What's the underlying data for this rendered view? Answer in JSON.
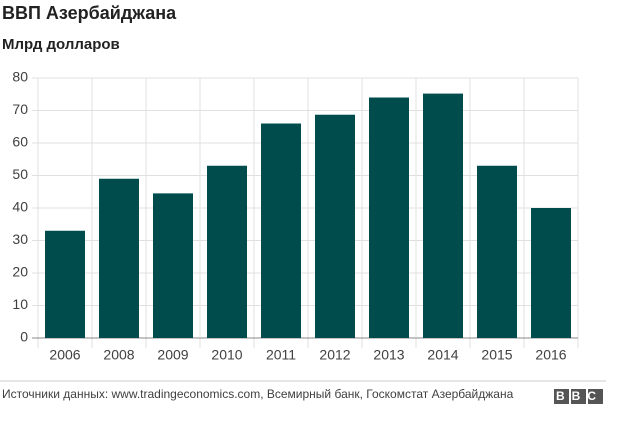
{
  "chart_data": {
    "type": "bar",
    "title": "ВВП Азербайджана",
    "subtitle": "Млрд долларов",
    "categories": [
      "2006",
      "2008",
      "2009",
      "2010",
      "2011",
      "2012",
      "2013",
      "2014",
      "2015",
      "2016"
    ],
    "values": [
      33,
      49,
      44.5,
      53,
      66,
      68.7,
      74,
      75.2,
      53,
      40
    ],
    "color": "#004c4c",
    "ylim": [
      0,
      80
    ],
    "yticks": [
      0,
      10,
      20,
      30,
      40,
      50,
      60,
      70,
      80
    ],
    "grid": true,
    "source": "Источники данных: www.tradingeconomics.com, Всемирный банк, Госкомстат Азербайджана",
    "logo": "BBC"
  }
}
